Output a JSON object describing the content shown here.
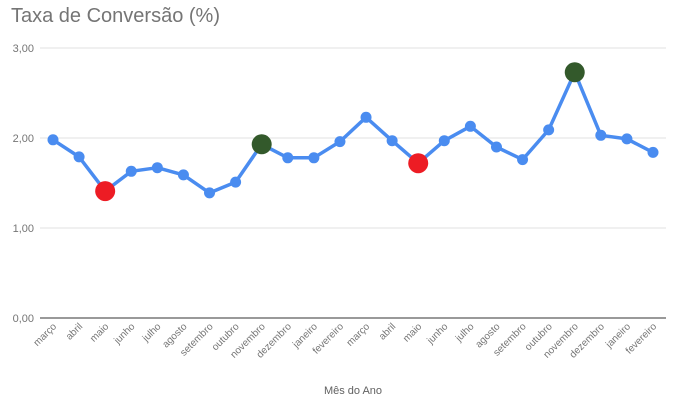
{
  "chart_data": {
    "type": "line",
    "title": "Taxa de Conversão (%)",
    "xlabel": "Mês do Ano",
    "ylabel": "",
    "ylim": [
      0,
      3
    ],
    "yticks": [
      "0,00",
      "1,00",
      "2,00",
      "3,00"
    ],
    "grid": true,
    "legend": "none",
    "categories": [
      "março",
      "abril",
      "maio",
      "junho",
      "julho",
      "agosto",
      "setembro",
      "outubro",
      "novembro",
      "dezembro",
      "janeiro",
      "fevereiro",
      "março",
      "abril",
      "maio",
      "junho",
      "julho",
      "agosto",
      "setembro",
      "outubro",
      "novembro",
      "dezembro",
      "janeiro",
      "fevereiro"
    ],
    "series": [
      {
        "name": "Taxa de Conversão (%)",
        "color": "#4A8CF0",
        "values": [
          1.98,
          1.79,
          1.41,
          1.63,
          1.67,
          1.59,
          1.39,
          1.51,
          1.93,
          1.78,
          1.78,
          1.96,
          2.23,
          1.97,
          1.72,
          1.97,
          2.13,
          1.9,
          1.76,
          2.09,
          2.73,
          2.03,
          1.99,
          1.84
        ]
      }
    ],
    "highlights": [
      {
        "index": 2,
        "label": "maio",
        "value": 1.41,
        "color": "#ED1C24",
        "kind": "low"
      },
      {
        "index": 8,
        "label": "novembro",
        "value": 1.93,
        "color": "#33592B",
        "kind": "high"
      },
      {
        "index": 14,
        "label": "maio",
        "value": 1.72,
        "color": "#ED1C24",
        "kind": "low"
      },
      {
        "index": 20,
        "label": "novembro",
        "value": 2.73,
        "color": "#33592B",
        "kind": "high"
      }
    ]
  },
  "colors": {
    "line": "#4A8CF0",
    "low_marker": "#ED1C24",
    "high_marker": "#33592B",
    "grid": "#E0E0E0",
    "axis": "#333333",
    "text": "#757575"
  }
}
